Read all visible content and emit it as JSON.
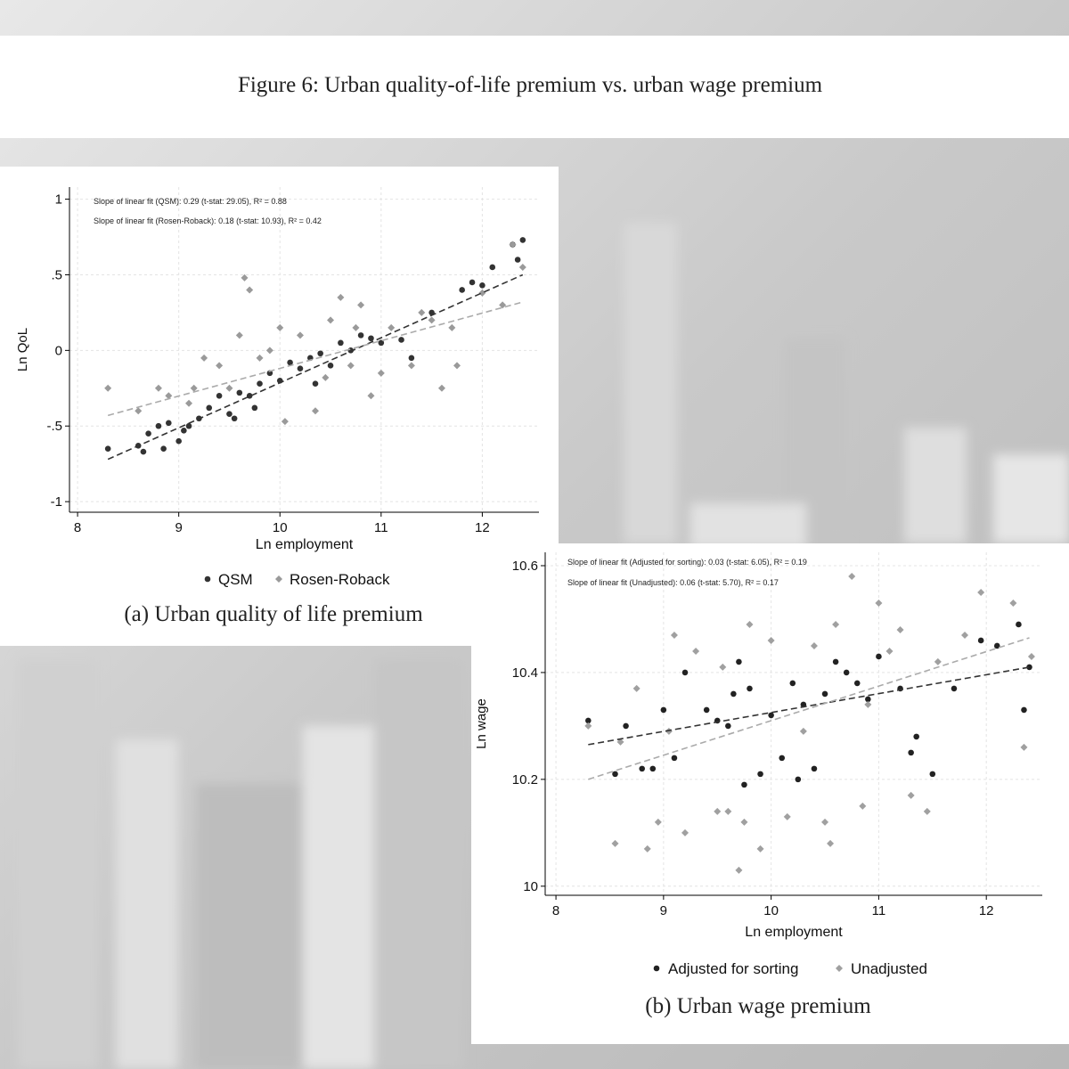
{
  "title": "Figure 6: Urban quality-of-life premium vs. urban wage premium",
  "chart_data": [
    {
      "type": "scatter",
      "caption": "(a) Urban quality of life premium",
      "xlabel": "Ln employment",
      "ylabel": "Ln QoL",
      "annotations": [
        "Slope of linear fit (QSM): 0.29 (t-stat: 29.05), R² = 0.88",
        "Slope of linear fit (Rosen-Roback): 0.18 (t-stat: 10.93), R² = 0.42"
      ],
      "xlim": [
        7.92,
        12.56
      ],
      "ylim": [
        -1.07,
        1.08
      ],
      "xticks": [
        8,
        9,
        10,
        11,
        12
      ],
      "yticks": [
        -1,
        {
          "value": -0.5,
          "label": "-.5"
        },
        0,
        {
          "value": 0.5,
          "label": ".5"
        },
        1
      ],
      "grid": true,
      "legend": "bottom",
      "series": [
        {
          "name": "QSM",
          "color": "#333333",
          "marker": "circle",
          "x": [
            8.3,
            8.6,
            8.65,
            8.7,
            8.8,
            8.85,
            8.9,
            9,
            9.05,
            9.1,
            9.3,
            9.4,
            9.5,
            9.55,
            9.6,
            9.7,
            9.8,
            9.9,
            10,
            10.1,
            10.2,
            10.3,
            10.4,
            10.5,
            10.6,
            10.7,
            10.8,
            10.9,
            11,
            11.2,
            11.3,
            11.5,
            11.8,
            11.9,
            12,
            12.1,
            12.3,
            12.4,
            12.35,
            9.2,
            10.35,
            9.75
          ],
          "values": [
            -0.65,
            -0.63,
            -0.67,
            -0.55,
            -0.5,
            -0.65,
            -0.48,
            -0.6,
            -0.53,
            -0.5,
            -0.38,
            -0.3,
            -0.42,
            -0.45,
            -0.28,
            -0.3,
            -0.22,
            -0.15,
            -0.2,
            -0.08,
            -0.12,
            -0.05,
            -0.02,
            -0.1,
            0.05,
            0,
            0.1,
            0.08,
            0.05,
            0.07,
            -0.05,
            0.25,
            0.4,
            0.45,
            0.43,
            0.55,
            0.7,
            0.73,
            0.6,
            -0.45,
            -0.22,
            -0.38
          ]
        },
        {
          "name": "Rosen-Roback",
          "color": "#9a9a9a",
          "marker": "diamond",
          "x": [
            8.3,
            8.6,
            8.8,
            8.9,
            9.1,
            9.25,
            9.4,
            9.5,
            9.6,
            9.65,
            9.7,
            9.8,
            9.9,
            10,
            10.05,
            10.2,
            10.35,
            10.5,
            10.6,
            10.7,
            10.8,
            10.9,
            11,
            11.1,
            11.3,
            11.4,
            11.5,
            11.6,
            11.7,
            11.75,
            12,
            12.2,
            12.3,
            12.4,
            9.15,
            10.45,
            10.75
          ],
          "values": [
            -0.25,
            -0.4,
            -0.25,
            -0.3,
            -0.35,
            -0.05,
            -0.1,
            -0.25,
            0.1,
            0.48,
            0.4,
            -0.05,
            0,
            0.15,
            -0.47,
            0.1,
            -0.4,
            0.2,
            0.35,
            -0.1,
            0.3,
            -0.3,
            -0.15,
            0.15,
            -0.1,
            0.25,
            0.2,
            -0.25,
            0.15,
            -0.1,
            0.38,
            0.3,
            0.7,
            0.55,
            -0.25,
            -0.18,
            0.15
          ]
        }
      ],
      "fit_lines": [
        {
          "color": "#333333",
          "x": [
            8.3,
            12.4
          ],
          "values": [
            -0.72,
            0.5
          ]
        },
        {
          "color": "#aaaaaa",
          "x": [
            8.3,
            12.4
          ],
          "values": [
            -0.43,
            0.32
          ]
        }
      ]
    },
    {
      "type": "scatter",
      "caption": "(b) Urban wage premium",
      "xlabel": "Ln employment",
      "ylabel": "Ln wage",
      "annotations": [
        "Slope of linear fit (Adjusted for sorting): 0.03 (t-stat: 6.05), R² = 0.19",
        "Slope of linear fit (Unadjusted): 0.06 (t-stat: 5.70), R² = 0.17"
      ],
      "xlim": [
        7.9,
        12.52
      ],
      "ylim": [
        9.983,
        10.625
      ],
      "xticks": [
        8,
        9,
        10,
        11,
        12
      ],
      "yticks": [
        10,
        10.2,
        10.4,
        10.6
      ],
      "grid": true,
      "legend": "bottom",
      "series": [
        {
          "name": "Adjusted for sorting",
          "color": "#222222",
          "marker": "circle",
          "x": [
            8.3,
            8.55,
            8.65,
            8.8,
            8.9,
            9,
            9.1,
            9.2,
            9.4,
            9.5,
            9.6,
            9.7,
            9.75,
            9.8,
            9.9,
            10,
            10.1,
            10.2,
            10.3,
            10.4,
            10.5,
            10.6,
            10.7,
            10.8,
            10.9,
            11,
            11.2,
            11.3,
            11.35,
            11.5,
            11.7,
            11.95,
            12.1,
            12.3,
            12.35,
            12.4,
            10.25,
            9.65
          ],
          "values": [
            10.31,
            10.21,
            10.3,
            10.22,
            10.22,
            10.33,
            10.24,
            10.4,
            10.33,
            10.31,
            10.3,
            10.42,
            10.19,
            10.37,
            10.21,
            10.32,
            10.24,
            10.38,
            10.34,
            10.22,
            10.36,
            10.42,
            10.4,
            10.38,
            10.35,
            10.43,
            10.37,
            10.25,
            10.28,
            10.21,
            10.37,
            10.46,
            10.45,
            10.49,
            10.33,
            10.41,
            10.2,
            10.36
          ]
        },
        {
          "name": "Unadjusted",
          "color": "#a0a0a0",
          "marker": "diamond",
          "x": [
            8.3,
            8.55,
            8.6,
            8.75,
            8.85,
            8.95,
            9.05,
            9.1,
            9.2,
            9.3,
            9.5,
            9.55,
            9.6,
            9.7,
            9.75,
            9.8,
            9.9,
            10,
            10.15,
            10.3,
            10.4,
            10.5,
            10.6,
            10.75,
            10.85,
            10.9,
            11,
            11.1,
            11.2,
            11.3,
            11.45,
            11.55,
            11.8,
            11.95,
            12.25,
            12.35,
            12.42,
            10.55
          ],
          "values": [
            10.3,
            10.08,
            10.27,
            10.37,
            10.07,
            10.12,
            10.29,
            10.47,
            10.1,
            10.44,
            10.14,
            10.41,
            10.14,
            10.03,
            10.12,
            10.49,
            10.07,
            10.46,
            10.13,
            10.29,
            10.45,
            10.12,
            10.49,
            10.58,
            10.15,
            10.34,
            10.53,
            10.44,
            10.48,
            10.17,
            10.14,
            10.42,
            10.47,
            10.55,
            10.53,
            10.26,
            10.43,
            10.08
          ]
        }
      ],
      "fit_lines": [
        {
          "color": "#333333",
          "x": [
            8.3,
            12.4
          ],
          "values": [
            10.265,
            10.41
          ]
        },
        {
          "color": "#aaaaaa",
          "x": [
            8.3,
            12.4
          ],
          "values": [
            10.2,
            10.465
          ]
        }
      ]
    }
  ]
}
